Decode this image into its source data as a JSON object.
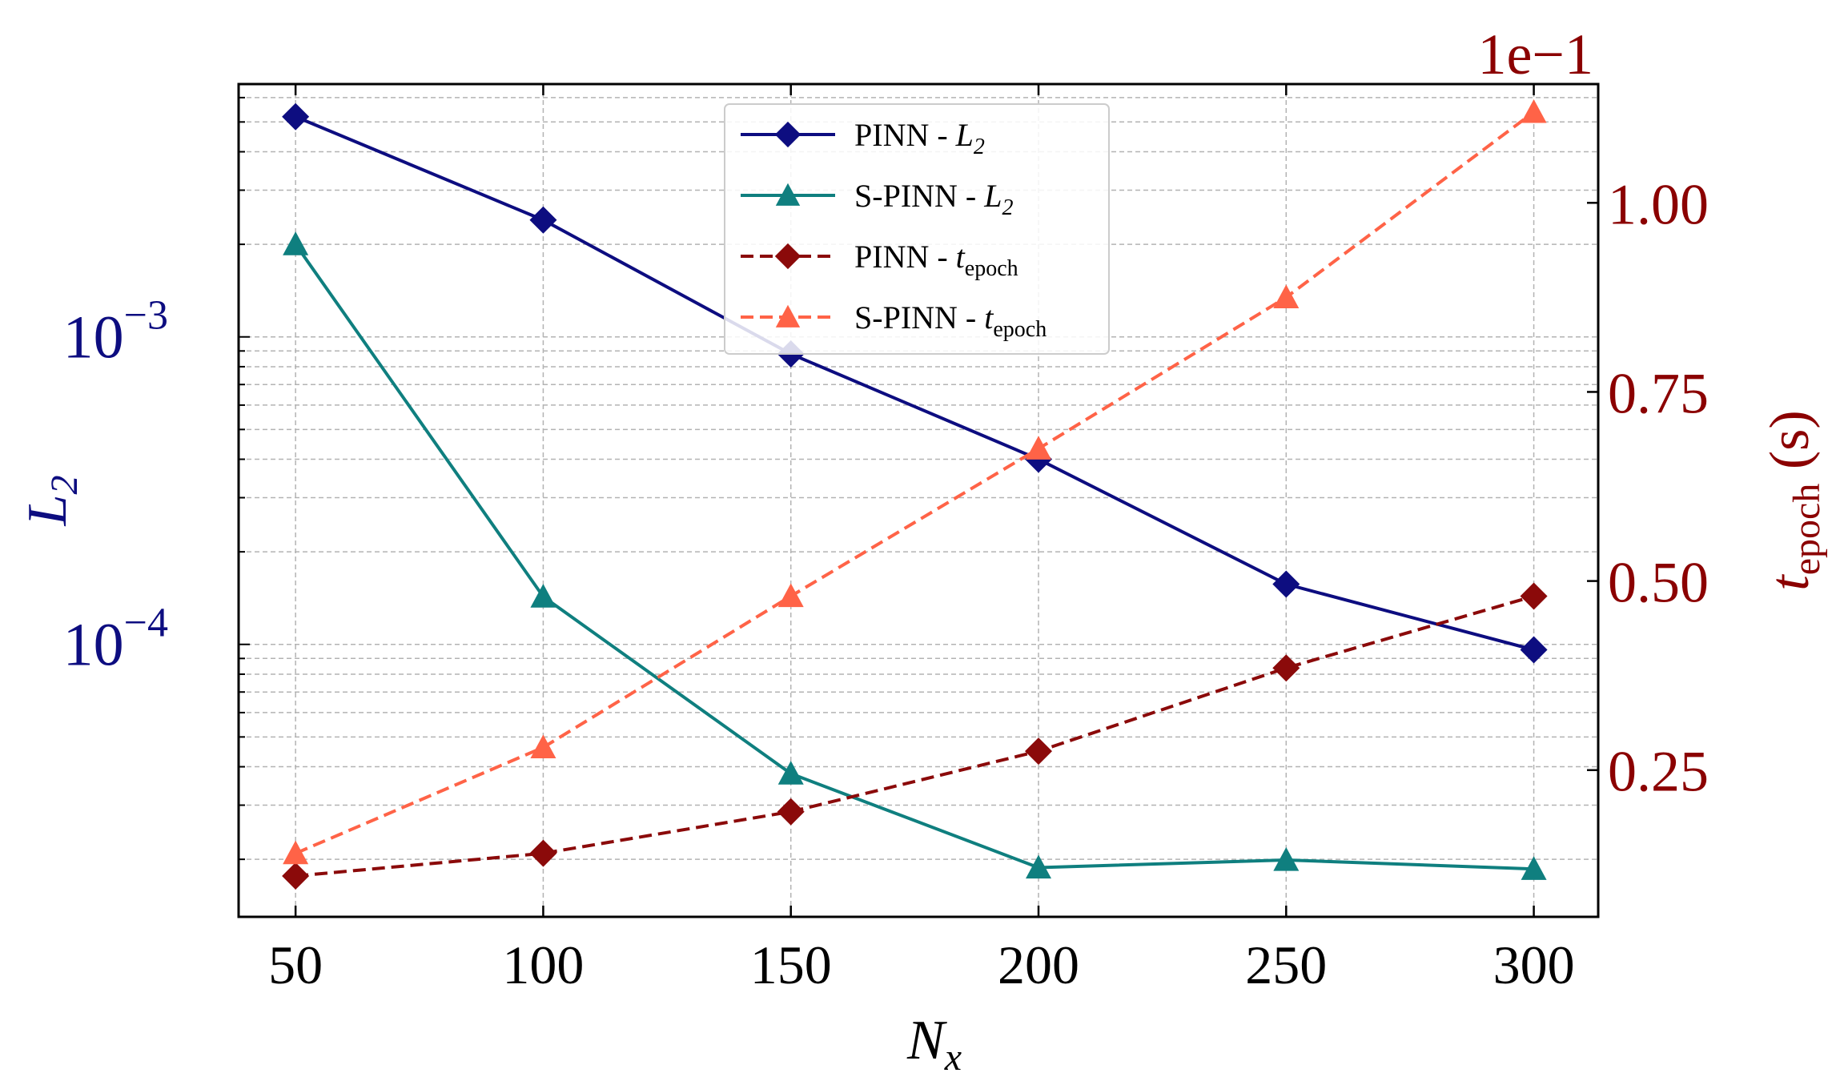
{
  "chart_data": {
    "type": "line",
    "x": [
      50,
      100,
      150,
      200,
      250,
      300
    ],
    "xlabel": {
      "main": "N",
      "sub": "x"
    },
    "xlim": [
      38.5,
      313
    ],
    "xticks": [
      "50",
      "100",
      "150",
      "200",
      "250",
      "300"
    ],
    "left_axis": {
      "label": {
        "main": "L",
        "sub": "2"
      },
      "scale": "log",
      "ylim": [
        1.3e-05,
        0.00664
      ],
      "ticks": [
        {
          "value": 0.001,
          "base": "10",
          "exp": "−3"
        },
        {
          "value": 0.0001,
          "base": "10",
          "exp": "−4"
        }
      ],
      "color": "#0d0d80"
    },
    "right_axis": {
      "label": {
        "main": "t",
        "sub": "epoch",
        "unit": " (s)"
      },
      "scale": "linear",
      "ylim": [
        0.056,
        1.157
      ],
      "ticks": [
        "0.25",
        "0.50",
        "0.75",
        "1.00"
      ],
      "offset_text": "1e−1",
      "color": "#8b0000"
    },
    "series": [
      {
        "name": "PINN - L2",
        "legend_main": "PINN - ",
        "legend_var": "L",
        "legend_sub": "2",
        "axis": "left",
        "marker": "diamond",
        "linestyle": "solid",
        "color": "#0d0d80",
        "values": [
          0.0052,
          0.0024,
          0.00088,
          0.0004,
          0.000157,
          9.6e-05
        ]
      },
      {
        "name": "S-PINN - L2",
        "legend_main": "S-PINN - ",
        "legend_var": "L",
        "legend_sub": "2",
        "axis": "left",
        "marker": "triangle",
        "linestyle": "solid",
        "color": "#0f7f7f",
        "values": [
          0.002,
          0.000143,
          3.8e-05,
          1.88e-05,
          1.99e-05,
          1.86e-05
        ]
      },
      {
        "name": "PINN - t_epoch",
        "legend_main": "PINN - ",
        "legend_var": "t",
        "legend_sub": "epoch",
        "axis": "right",
        "marker": "diamond",
        "linestyle": "dashed",
        "color": "#8b0a0a",
        "values": [
          0.11,
          0.14,
          0.195,
          0.275,
          0.385,
          0.48
        ]
      },
      {
        "name": "S-PINN - t_epoch",
        "legend_main": "S-PINN - ",
        "legend_var": "t",
        "legend_sub": "epoch",
        "axis": "right",
        "marker": "triangle",
        "linestyle": "dashed",
        "color": "#ff6347",
        "values": [
          0.14,
          0.28,
          0.48,
          0.675,
          0.875,
          1.12
        ]
      }
    ],
    "legend_position": "top-center",
    "grid": true
  }
}
